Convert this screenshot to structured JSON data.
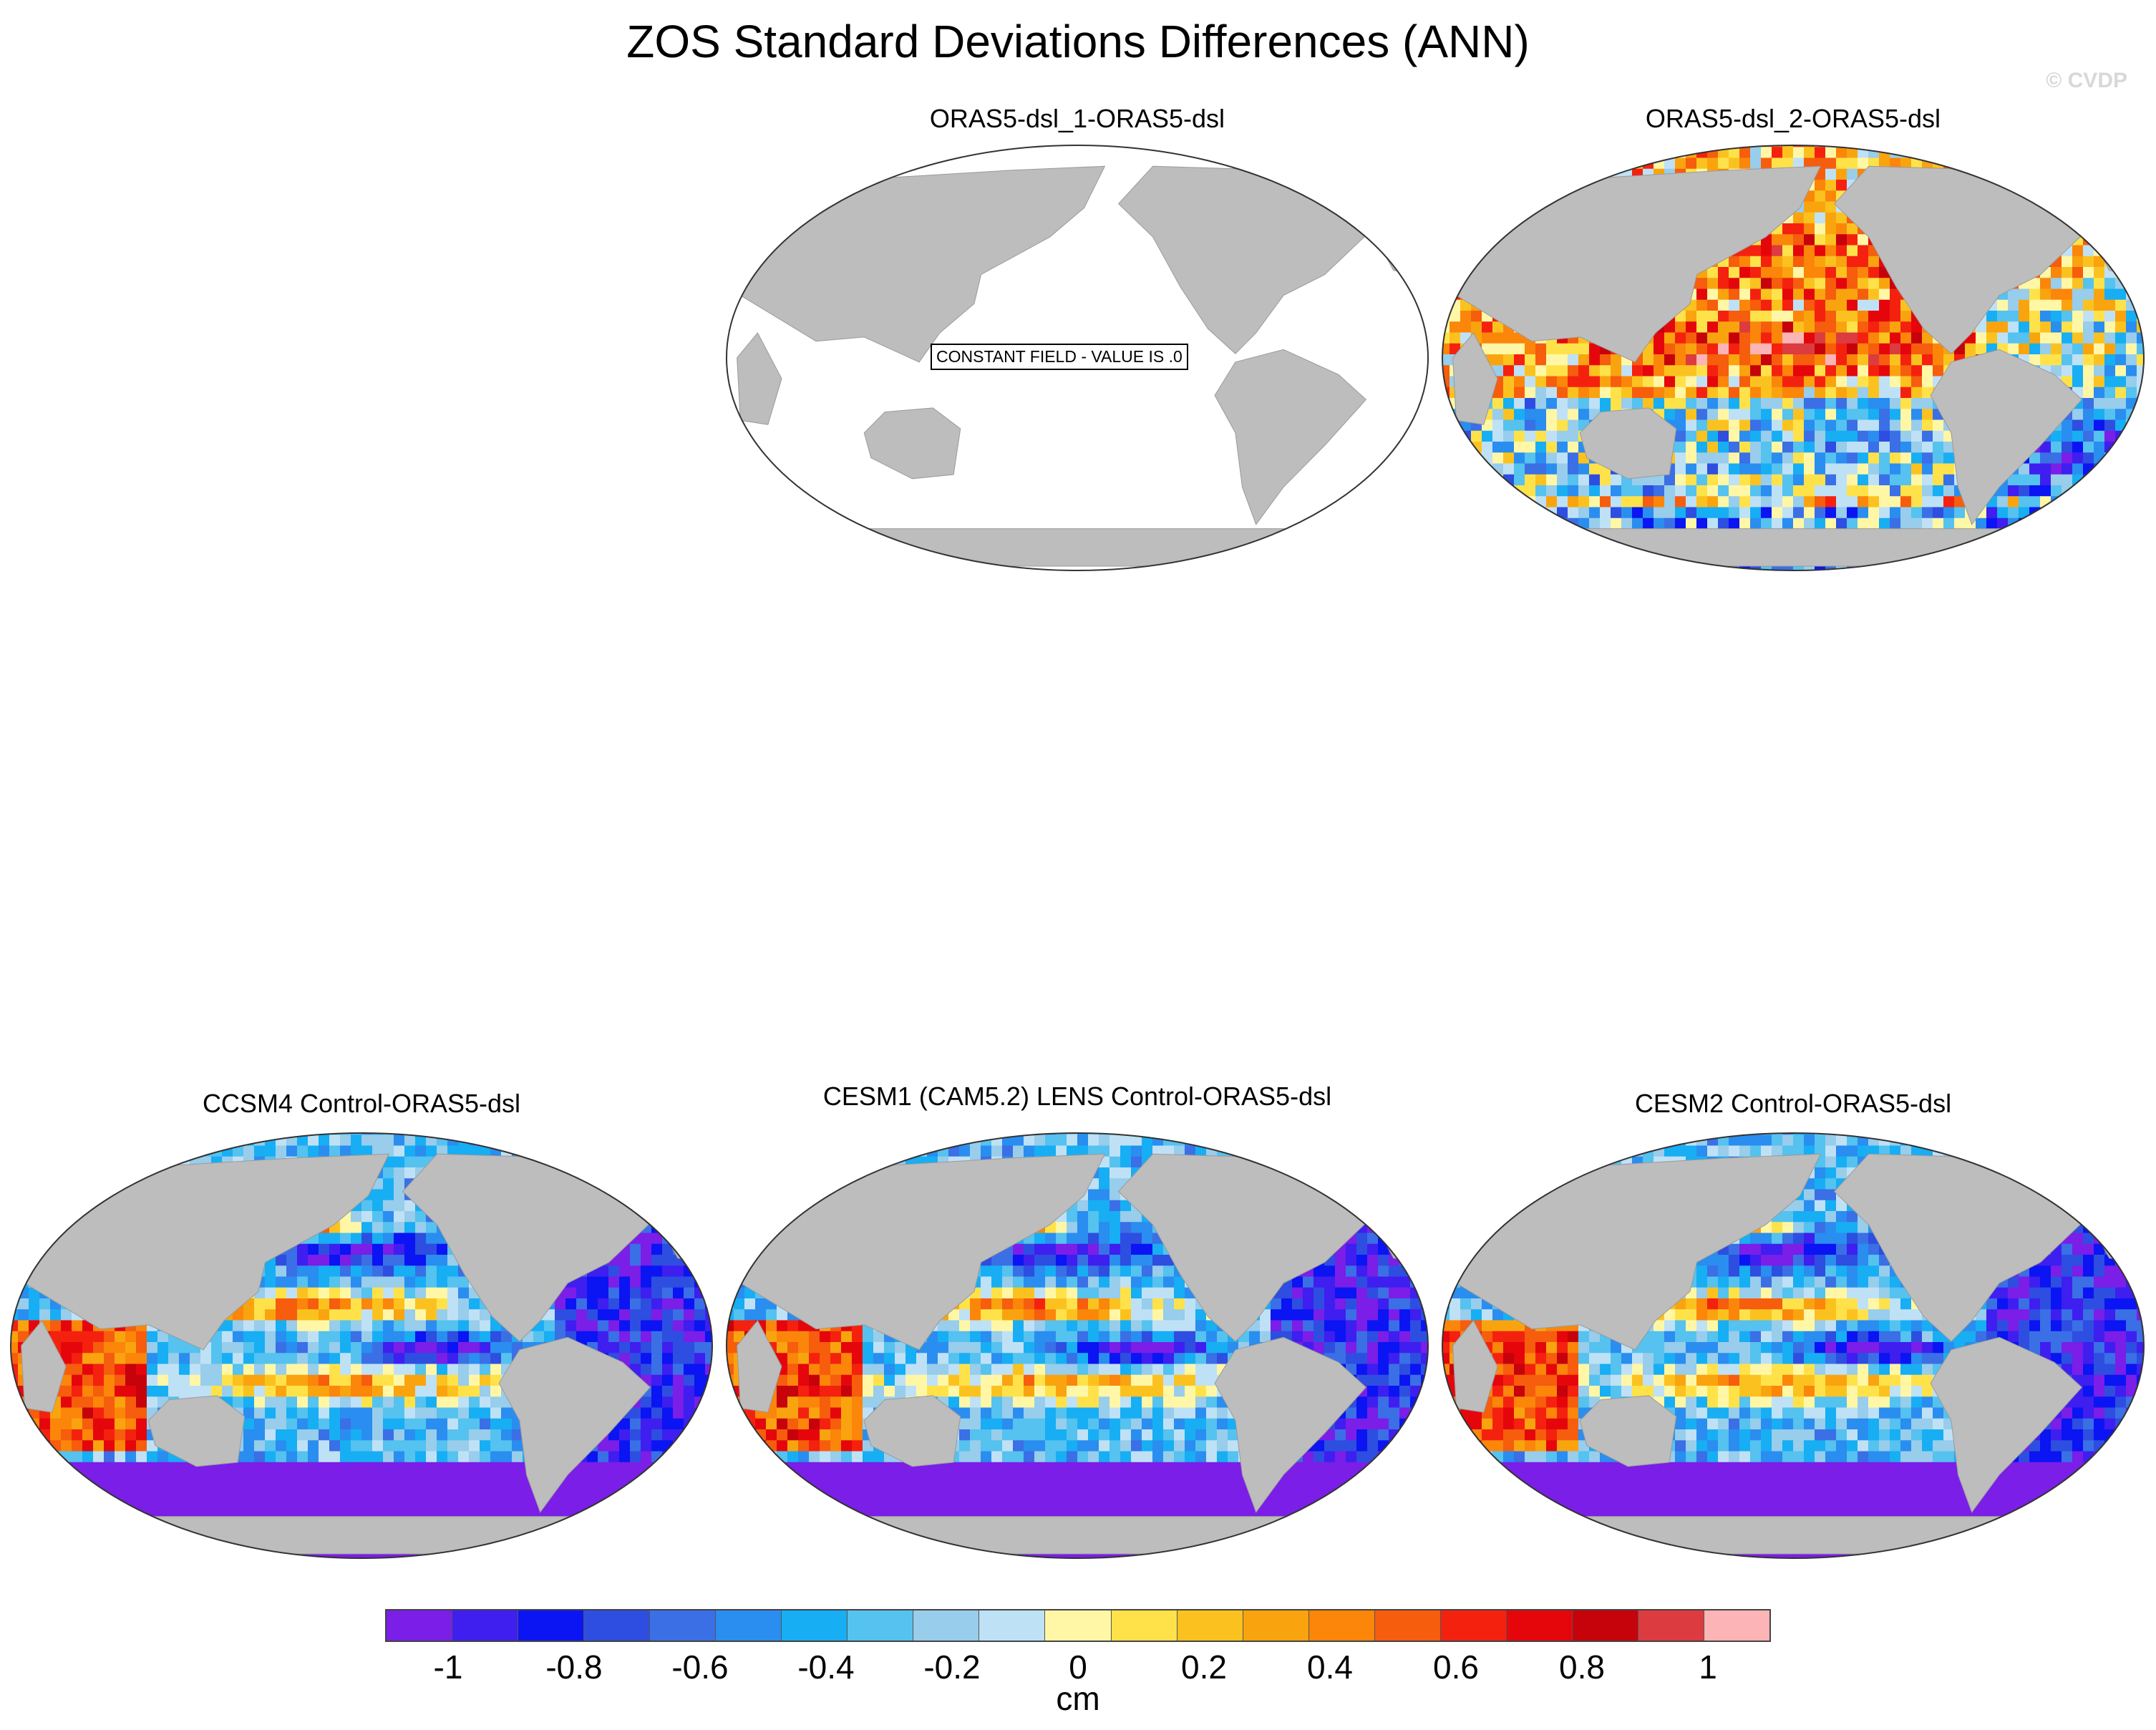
{
  "title": "ZOS Standard Deviations Differences (ANN)",
  "credit": "© CVDP",
  "colors": {
    "land": "#bdbdbd",
    "ocean_empty": "#ffffff",
    "palette": [
      "#7a1ee8",
      "#3f1ef0",
      "#0b14f2",
      "#2d4ee0",
      "#3a6fe6",
      "#2a8df0",
      "#17aef4",
      "#55c2ef",
      "#98cdeb",
      "#bfe1f6",
      "#fff7a6",
      "#ffe24a",
      "#fbc21f",
      "#f9a40f",
      "#fb860a",
      "#f65d0d",
      "#f5210f",
      "#e5060c",
      "#c6020b",
      "#dc3b3f",
      "#fcb4b6"
    ]
  },
  "panels": [
    {
      "id": "p1",
      "title": "ORAS5-dsl_1-ORAS5-dsl",
      "note": "CONSTANT FIELD - VALUE IS .0",
      "constant": true,
      "pattern": "none"
    },
    {
      "id": "p2",
      "title": "ORAS5-dsl_2-ORAS5-dsl",
      "constant": false,
      "pattern": "mixed"
    },
    {
      "id": "p3",
      "title": "CCSM4 Control-ORAS5-dsl",
      "constant": false,
      "pattern": "model"
    },
    {
      "id": "p4",
      "title": "CESM1 (CAM5.2) LENS Control-ORAS5-dsl",
      "constant": false,
      "pattern": "model"
    },
    {
      "id": "p5",
      "title": "CESM2 Control-ORAS5-dsl",
      "constant": false,
      "pattern": "model"
    }
  ],
  "colorbar": {
    "ticks": [
      "-1",
      "-0.8",
      "-0.6",
      "-0.4",
      "-0.2",
      "0",
      "0.2",
      "0.4",
      "0.6",
      "0.8",
      "1"
    ],
    "tick_values": [
      -1,
      -0.8,
      -0.6,
      -0.4,
      -0.2,
      0,
      0.2,
      0.4,
      0.6,
      0.8,
      1
    ],
    "range": [
      -1.1,
      1.1
    ],
    "units": "cm"
  }
}
